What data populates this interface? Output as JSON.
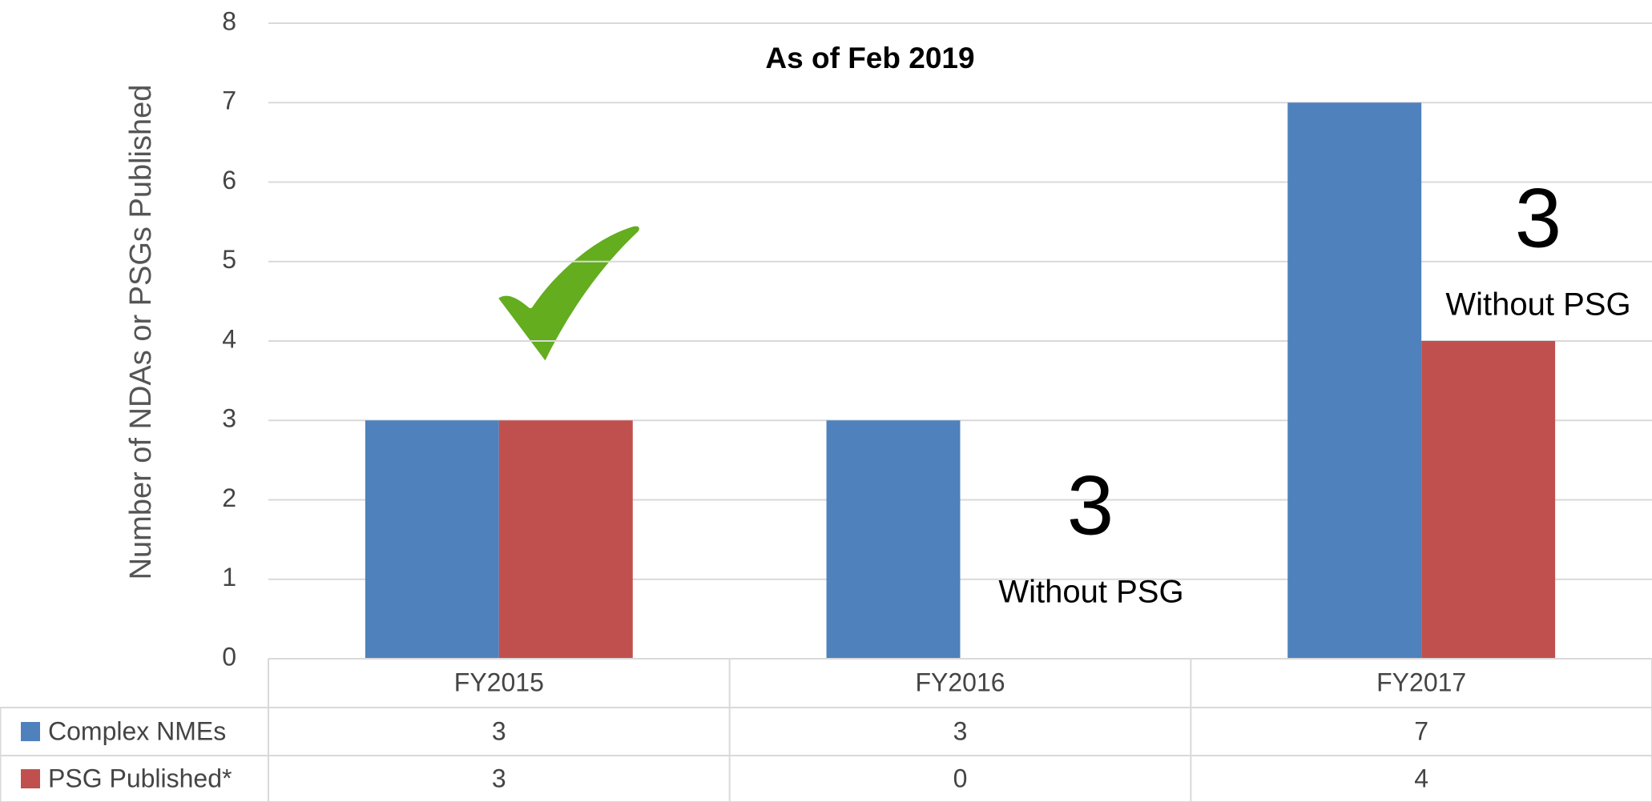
{
  "chart_data": {
    "type": "bar",
    "title": "As of Feb 2019",
    "y_label": "Number of NDAs or PSGs Published",
    "categories": [
      "FY2015",
      "FY2016",
      "FY2017"
    ],
    "series": [
      {
        "name": "Complex NMEs",
        "color": "#4f81bd",
        "values": [
          3,
          3,
          7
        ]
      },
      {
        "name": "PSG Published*",
        "color": "#c0504d",
        "values": [
          3,
          0,
          4
        ]
      }
    ],
    "ylim": [
      0,
      8
    ],
    "yticks": [
      0,
      1,
      2,
      3,
      4,
      5,
      6,
      7,
      8
    ],
    "grid": true,
    "annotations": [
      "3",
      "Without PSG",
      "3",
      "Without PSG"
    ]
  }
}
